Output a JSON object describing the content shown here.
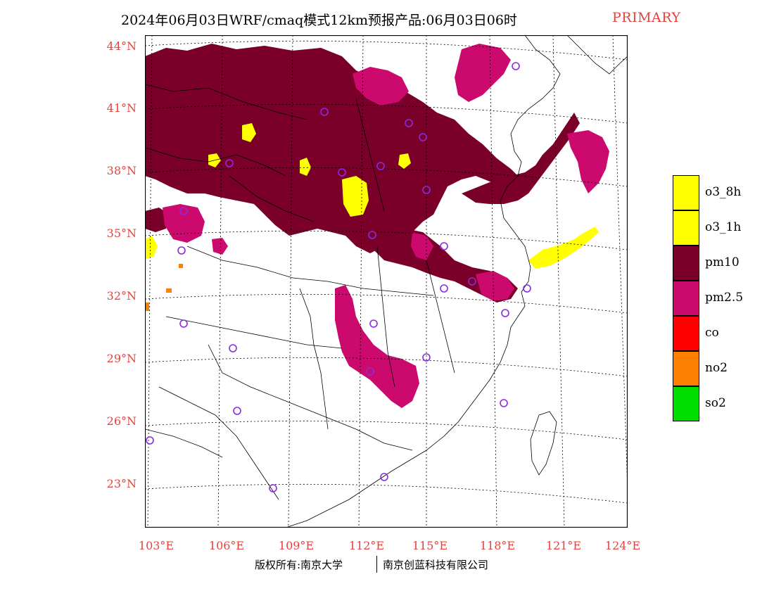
{
  "title": {
    "main": "2024年06月03日WRF/cmaq模式12km预报产品:06月03日06时",
    "tag": "PRIMARY"
  },
  "lat_labels": [
    "44°N",
    "41°N",
    "38°N",
    "35°N",
    "32°N",
    "29°N",
    "26°N",
    "23°N"
  ],
  "lon_labels": [
    "103°E",
    "106°E",
    "109°E",
    "112°E",
    "115°E",
    "118°E",
    "121°E",
    "124°E"
  ],
  "legend": [
    {
      "label": "o3_8h",
      "color": "#ffff00"
    },
    {
      "label": "o3_1h",
      "color": "#ffff00"
    },
    {
      "label": "pm10",
      "color": "#7a0029"
    },
    {
      "label": "pm2.5",
      "color": "#cc0a6e"
    },
    {
      "label": "co",
      "color": "#ff0000"
    },
    {
      "label": "no2",
      "color": "#ff7f00"
    },
    {
      "label": "so2",
      "color": "#00dd00"
    }
  ],
  "footer": {
    "left": "版权所有:南京大学",
    "right": "南京创蓝科技有限公司"
  },
  "colors": {
    "pm10": "#7a0029",
    "pm25": "#cc0a6e",
    "o3": "#ffff00",
    "no2": "#ff7f00",
    "station": "#8a2be2",
    "label": "#e8413c"
  }
}
